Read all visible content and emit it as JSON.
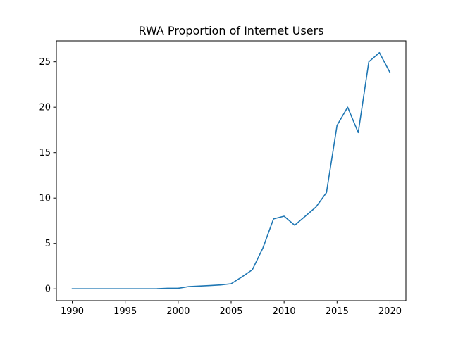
{
  "chart_data": {
    "type": "line",
    "title": "RWA Proportion of Internet Users",
    "xlabel": "",
    "ylabel": "",
    "xlim": [
      1988.5,
      2021.5
    ],
    "ylim": [
      -1.3,
      27.3
    ],
    "xticks": [
      1990,
      1995,
      2000,
      2005,
      2010,
      2015,
      2020
    ],
    "yticks": [
      0,
      5,
      10,
      15,
      20,
      25
    ],
    "grid": false,
    "series": [
      {
        "color": "#1f77b4",
        "x": [
          1990,
          1991,
          1992,
          1993,
          1994,
          1995,
          1996,
          1997,
          1998,
          1999,
          2000,
          2001,
          2002,
          2003,
          2004,
          2005,
          2006,
          2007,
          2008,
          2009,
          2010,
          2011,
          2012,
          2013,
          2014,
          2015,
          2016,
          2017,
          2018,
          2019,
          2020
        ],
        "y": [
          0,
          0,
          0,
          0,
          0,
          0,
          0,
          0,
          0.01,
          0.06,
          0.06,
          0.25,
          0.3,
          0.36,
          0.43,
          0.56,
          1.3,
          2.1,
          4.5,
          7.7,
          8.0,
          7.0,
          8.0,
          9.0,
          10.6,
          18.0,
          20.0,
          17.2,
          25.0,
          26.0,
          23.8
        ]
      }
    ]
  }
}
